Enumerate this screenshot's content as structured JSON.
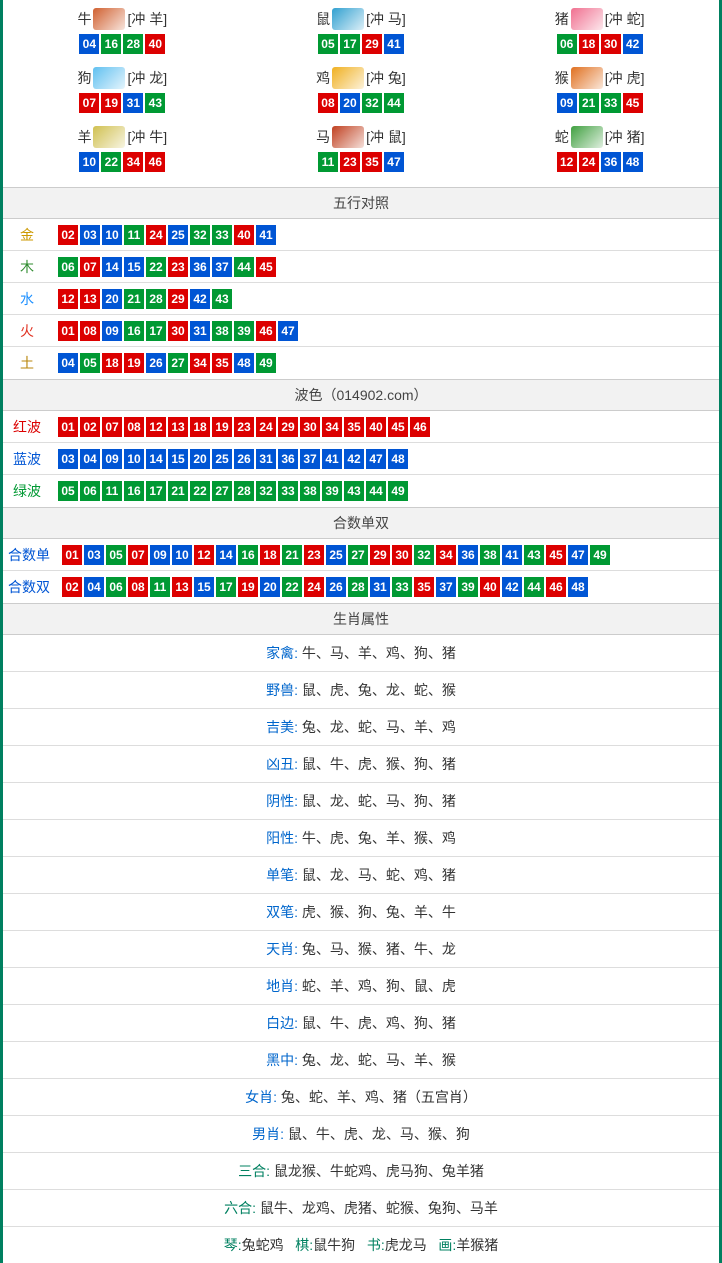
{
  "colors": {
    "red": "#dc0000",
    "blue": "#0055d4",
    "green": "#009933",
    "border": "#008060",
    "gold": "#cc9900",
    "wood_green": "#2e8b2e",
    "water_blue": "#1e90ff",
    "fire_red": "#e03020",
    "earth_brown": "#b8860b"
  },
  "num_color_map": {
    "01": "red",
    "02": "red",
    "07": "red",
    "08": "red",
    "12": "red",
    "13": "red",
    "18": "red",
    "19": "red",
    "23": "red",
    "24": "red",
    "29": "red",
    "30": "red",
    "34": "red",
    "35": "red",
    "40": "red",
    "45": "red",
    "46": "red",
    "03": "blue",
    "04": "blue",
    "09": "blue",
    "10": "blue",
    "14": "blue",
    "15": "blue",
    "20": "blue",
    "25": "blue",
    "26": "blue",
    "31": "blue",
    "36": "blue",
    "37": "blue",
    "41": "blue",
    "42": "blue",
    "47": "blue",
    "48": "blue",
    "05": "green",
    "06": "green",
    "11": "green",
    "16": "green",
    "17": "green",
    "21": "green",
    "22": "green",
    "27": "green",
    "28": "green",
    "32": "green",
    "33": "green",
    "38": "green",
    "39": "green",
    "43": "green",
    "44": "green",
    "49": "green"
  },
  "zodiac": [
    {
      "name": "牛",
      "icon_color": "#d06030",
      "clash": "[冲 羊]",
      "nums": [
        "04",
        "16",
        "28",
        "40"
      ]
    },
    {
      "name": "鼠",
      "icon_color": "#30a0d0",
      "clash": "[冲 马]",
      "nums": [
        "05",
        "17",
        "29",
        "41"
      ]
    },
    {
      "name": "猪",
      "icon_color": "#f07090",
      "clash": "[冲 蛇]",
      "nums": [
        "06",
        "18",
        "30",
        "42"
      ]
    },
    {
      "name": "狗",
      "icon_color": "#60c0f0",
      "clash": "[冲 龙]",
      "nums": [
        "07",
        "19",
        "31",
        "43"
      ]
    },
    {
      "name": "鸡",
      "icon_color": "#f0b020",
      "clash": "[冲 兔]",
      "nums": [
        "08",
        "20",
        "32",
        "44"
      ]
    },
    {
      "name": "猴",
      "icon_color": "#e07020",
      "clash": "[冲 虎]",
      "nums": [
        "09",
        "21",
        "33",
        "45"
      ]
    },
    {
      "name": "羊",
      "icon_color": "#d0c050",
      "clash": "[冲 牛]",
      "nums": [
        "10",
        "22",
        "34",
        "46"
      ]
    },
    {
      "name": "马",
      "icon_color": "#c04020",
      "clash": "[冲 鼠]",
      "nums": [
        "11",
        "23",
        "35",
        "47"
      ]
    },
    {
      "name": "蛇",
      "icon_color": "#40a040",
      "clash": "[冲 猪]",
      "nums": [
        "12",
        "24",
        "36",
        "48"
      ]
    }
  ],
  "five_elements": {
    "title": "五行对照",
    "rows": [
      {
        "label": "金",
        "label_color": "#cc9900",
        "nums": [
          "02",
          "03",
          "10",
          "11",
          "24",
          "25",
          "32",
          "33",
          "40",
          "41"
        ]
      },
      {
        "label": "木",
        "label_color": "#2e8b2e",
        "nums": [
          "06",
          "07",
          "14",
          "15",
          "22",
          "23",
          "36",
          "37",
          "44",
          "45"
        ]
      },
      {
        "label": "水",
        "label_color": "#1e90ff",
        "nums": [
          "12",
          "13",
          "20",
          "21",
          "28",
          "29",
          "42",
          "43"
        ]
      },
      {
        "label": "火",
        "label_color": "#e03020",
        "nums": [
          "01",
          "08",
          "09",
          "16",
          "17",
          "30",
          "31",
          "38",
          "39",
          "46",
          "47"
        ]
      },
      {
        "label": "土",
        "label_color": "#b8860b",
        "nums": [
          "04",
          "05",
          "18",
          "19",
          "26",
          "27",
          "34",
          "35",
          "48",
          "49"
        ]
      }
    ]
  },
  "waves": {
    "title": "波色（014902.com）",
    "rows": [
      {
        "label": "红波",
        "label_color": "#dc0000",
        "nums": [
          "01",
          "02",
          "07",
          "08",
          "12",
          "13",
          "18",
          "19",
          "23",
          "24",
          "29",
          "30",
          "34",
          "35",
          "40",
          "45",
          "46"
        ]
      },
      {
        "label": "蓝波",
        "label_color": "#0055d4",
        "nums": [
          "03",
          "04",
          "09",
          "10",
          "14",
          "15",
          "20",
          "25",
          "26",
          "31",
          "36",
          "37",
          "41",
          "42",
          "47",
          "48"
        ]
      },
      {
        "label": "绿波",
        "label_color": "#009933",
        "nums": [
          "05",
          "06",
          "11",
          "16",
          "17",
          "21",
          "22",
          "27",
          "28",
          "32",
          "33",
          "38",
          "39",
          "43",
          "44",
          "49"
        ]
      }
    ]
  },
  "sums": {
    "title": "合数单双",
    "rows": [
      {
        "label": "合数单",
        "label_color": "#0055d4",
        "nums": [
          "01",
          "03",
          "05",
          "07",
          "09",
          "10",
          "12",
          "14",
          "16",
          "18",
          "21",
          "23",
          "25",
          "27",
          "29",
          "30",
          "32",
          "34",
          "36",
          "38",
          "41",
          "43",
          "45",
          "47",
          "49"
        ]
      },
      {
        "label": "合数双",
        "label_color": "#0055d4",
        "nums": [
          "02",
          "04",
          "06",
          "08",
          "11",
          "13",
          "15",
          "17",
          "19",
          "20",
          "22",
          "24",
          "26",
          "28",
          "31",
          "33",
          "35",
          "37",
          "39",
          "40",
          "42",
          "44",
          "46",
          "48"
        ]
      }
    ]
  },
  "attributes": {
    "title": "生肖属性",
    "rows": [
      {
        "label": "家禽: ",
        "label_color": "#0066cc",
        "value": "牛、马、羊、鸡、狗、猪"
      },
      {
        "label": "野兽: ",
        "label_color": "#0066cc",
        "value": "鼠、虎、兔、龙、蛇、猴"
      },
      {
        "label": "吉美: ",
        "label_color": "#0066cc",
        "value": "兔、龙、蛇、马、羊、鸡"
      },
      {
        "label": "凶丑: ",
        "label_color": "#0066cc",
        "value": "鼠、牛、虎、猴、狗、猪"
      },
      {
        "label": "阴性: ",
        "label_color": "#0066cc",
        "value": "鼠、龙、蛇、马、狗、猪"
      },
      {
        "label": "阳性: ",
        "label_color": "#0066cc",
        "value": "牛、虎、兔、羊、猴、鸡"
      },
      {
        "label": "单笔: ",
        "label_color": "#0066cc",
        "value": "鼠、龙、马、蛇、鸡、猪"
      },
      {
        "label": "双笔: ",
        "label_color": "#0066cc",
        "value": "虎、猴、狗、兔、羊、牛"
      },
      {
        "label": "天肖: ",
        "label_color": "#0066cc",
        "value": "兔、马、猴、猪、牛、龙"
      },
      {
        "label": "地肖: ",
        "label_color": "#0066cc",
        "value": "蛇、羊、鸡、狗、鼠、虎"
      },
      {
        "label": "白边: ",
        "label_color": "#0066cc",
        "value": "鼠、牛、虎、鸡、狗、猪"
      },
      {
        "label": "黑中: ",
        "label_color": "#0066cc",
        "value": "兔、龙、蛇、马、羊、猴"
      },
      {
        "label": "女肖: ",
        "label_color": "#0066cc",
        "value": "兔、蛇、羊、鸡、猪（五宫肖）"
      },
      {
        "label": "男肖: ",
        "label_color": "#0066cc",
        "value": "鼠、牛、虎、龙、马、猴、狗"
      },
      {
        "label": "三合: ",
        "label_color": "#008060",
        "value": "鼠龙猴、牛蛇鸡、虎马狗、兔羊猪"
      },
      {
        "label": "六合: ",
        "label_color": "#008060",
        "value": "鼠牛、龙鸡、虎猪、蛇猴、兔狗、马羊"
      }
    ],
    "footer_parts": [
      {
        "label": "琴:",
        "value": "兔蛇鸡"
      },
      {
        "label": "棋:",
        "value": "鼠牛狗"
      },
      {
        "label": "书:",
        "value": "虎龙马"
      },
      {
        "label": "画:",
        "value": "羊猴猪"
      }
    ]
  }
}
